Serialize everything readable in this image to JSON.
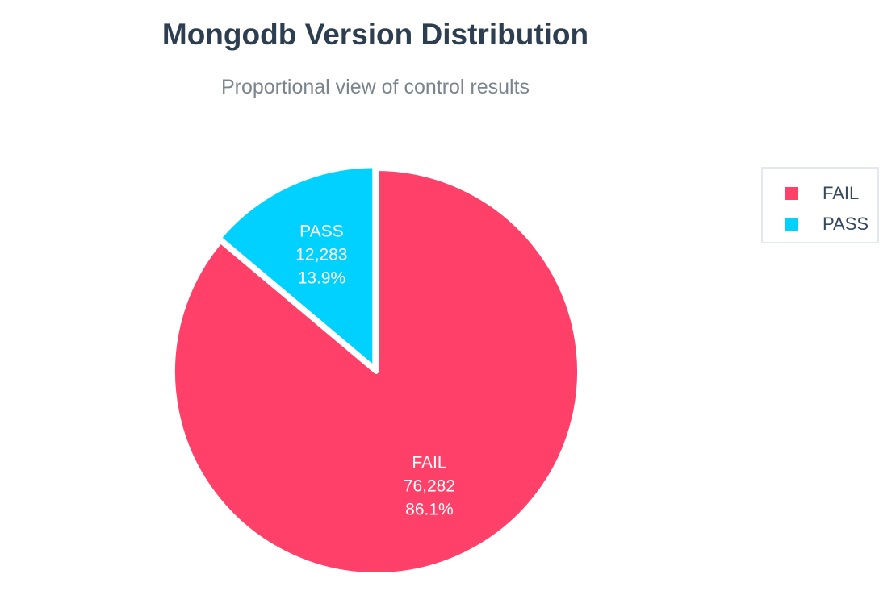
{
  "chart_data": {
    "type": "pie",
    "title": "Mongodb Version Distribution",
    "subtitle": "Proportional view of control results",
    "legend_position": "right",
    "slices": [
      {
        "label": "FAIL",
        "value": 76282,
        "value_label": "76,282",
        "percent_label": "86.1%",
        "color": "#ff4069"
      },
      {
        "label": "PASS",
        "value": 12283,
        "value_label": "12,283",
        "percent_label": "13.9%",
        "color": "#00d1ff"
      }
    ]
  }
}
